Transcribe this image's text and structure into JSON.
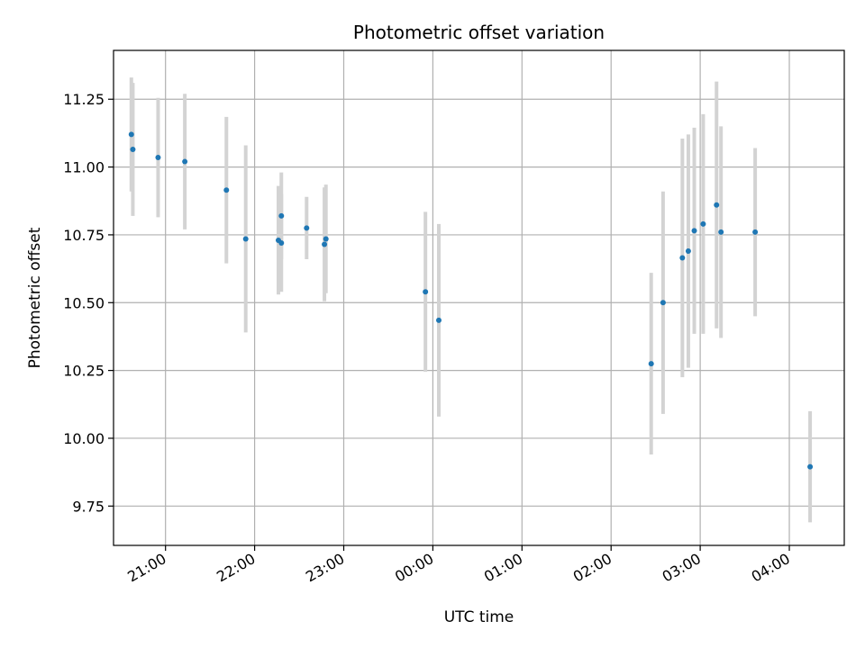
{
  "chart_data": {
    "type": "scatter",
    "title": "Photometric offset variation",
    "xlabel": "UTC time",
    "ylabel": "Photometric offset",
    "x_ticks": [
      "21:00",
      "22:00",
      "23:00",
      "00:00",
      "01:00",
      "02:00",
      "03:00",
      "04:00"
    ],
    "y_ticks": [
      "9.75",
      "10.00",
      "10.25",
      "10.50",
      "10.75",
      "11.00",
      "11.25"
    ],
    "xlim": [
      "20:25",
      "04:37"
    ],
    "ylim": [
      9.605,
      11.43
    ],
    "grid": true,
    "point_color": "#1f77b4",
    "errorbar_color": "#d3d3d3",
    "points": [
      {
        "x": "20:37",
        "y": 11.12,
        "err": 0.21
      },
      {
        "x": "20:38",
        "y": 11.065,
        "err": 0.245
      },
      {
        "x": "20:55",
        "y": 11.035,
        "err": 0.22
      },
      {
        "x": "21:13",
        "y": 11.02,
        "err": 0.25
      },
      {
        "x": "21:41",
        "y": 10.915,
        "err": 0.27
      },
      {
        "x": "21:54",
        "y": 10.735,
        "err": 0.345
      },
      {
        "x": "22:16",
        "y": 10.73,
        "err": 0.2
      },
      {
        "x": "22:18",
        "y": 10.82,
        "err": 0.16
      },
      {
        "x": "22:18",
        "y": 10.72,
        "err": 0.18
      },
      {
        "x": "22:35",
        "y": 10.775,
        "err": 0.115
      },
      {
        "x": "22:47",
        "y": 10.715,
        "err": 0.21
      },
      {
        "x": "22:48",
        "y": 10.735,
        "err": 0.2
      },
      {
        "x": "23:55",
        "y": 10.54,
        "err": 0.295
      },
      {
        "x": "00:04",
        "y": 10.435,
        "err": 0.355
      },
      {
        "x": "02:27",
        "y": 10.275,
        "err": 0.335
      },
      {
        "x": "02:35",
        "y": 10.5,
        "err": 0.41
      },
      {
        "x": "02:48",
        "y": 10.665,
        "err": 0.44
      },
      {
        "x": "02:52",
        "y": 10.69,
        "err": 0.43
      },
      {
        "x": "02:56",
        "y": 10.765,
        "err": 0.38
      },
      {
        "x": "03:02",
        "y": 10.79,
        "err": 0.405
      },
      {
        "x": "03:11",
        "y": 10.86,
        "err": 0.455
      },
      {
        "x": "03:14",
        "y": 10.76,
        "err": 0.39
      },
      {
        "x": "03:37",
        "y": 10.76,
        "err": 0.31
      },
      {
        "x": "04:14",
        "y": 9.895,
        "err": 0.205
      }
    ]
  }
}
